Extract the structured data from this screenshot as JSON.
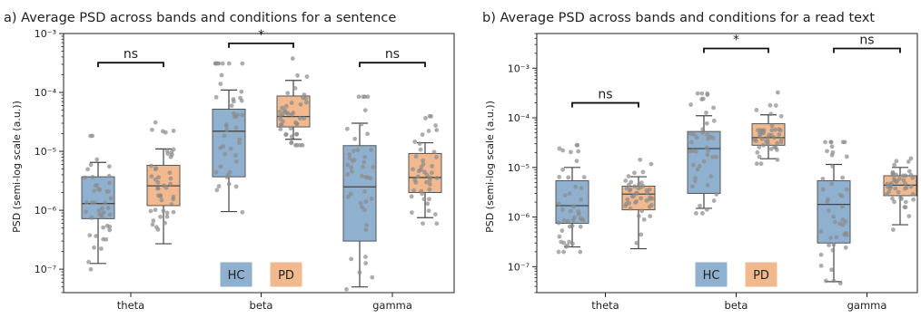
{
  "chart_data": [
    {
      "type": "box",
      "title": "a) Average PSD across bands and conditions for a sentence",
      "ylabel": "PSD (semi-log scale (a.u.))",
      "xlabel": "",
      "yscale": "log",
      "ylim": [
        4e-08,
        0.001
      ],
      "yticks": [
        "10^-7",
        "10^-6",
        "10^-5",
        "10^-4",
        "10^-3"
      ],
      "categories": [
        "theta",
        "beta",
        "gamma"
      ],
      "legend": {
        "placement": "bottom-center",
        "entries": [
          "HC",
          "PD"
        ]
      },
      "colors": {
        "HC": "#8fb1cf",
        "PD": "#f1b98d"
      },
      "series": [
        {
          "name": "HC",
          "boxes": [
            {
              "whisker_low": 1.25e-07,
              "q1": 7.2e-07,
              "median": 1.3e-06,
              "q3": 3.7e-06,
              "whisker_high": 6.5e-06
            },
            {
              "whisker_low": 9.5e-07,
              "q1": 3.7e-06,
              "median": 2.2e-05,
              "q3": 5.2e-05,
              "whisker_high": 0.00011
            },
            {
              "whisker_low": 5e-08,
              "q1": 3e-07,
              "median": 2.5e-06,
              "q3": 1.25e-05,
              "whisker_high": 3e-05
            }
          ]
        },
        {
          "name": "PD",
          "boxes": [
            {
              "whisker_low": 2.7e-07,
              "q1": 1.2e-06,
              "median": 2.6e-06,
              "q3": 5.8e-06,
              "whisker_high": 1.1e-05
            },
            {
              "whisker_low": 1.6e-05,
              "q1": 2.6e-05,
              "median": 3.9e-05,
              "q3": 8.7e-05,
              "whisker_high": 0.00016
            },
            {
              "whisker_low": 7.5e-07,
              "q1": 2e-06,
              "median": 3.6e-06,
              "q3": 9.2e-06,
              "whisker_high": 1.4e-05
            }
          ]
        }
      ],
      "significance": [
        {
          "category": "theta",
          "label": "ns",
          "y": 0.00032
        },
        {
          "category": "beta",
          "label": "*",
          "y": 0.00068
        },
        {
          "category": "gamma",
          "label": "ns",
          "y": 0.00032
        }
      ]
    },
    {
      "type": "box",
      "title": "b) Average PSD across bands and conditions for a read text",
      "ylabel": "PSD (semi-log scale (a.u.))",
      "xlabel": "",
      "yscale": "log",
      "ylim": [
        3e-08,
        0.005
      ],
      "yticks": [
        "10^-7",
        "10^-6",
        "10^-5",
        "10^-4",
        "10^-3"
      ],
      "categories": [
        "theta",
        "beta",
        "gamma"
      ],
      "legend": {
        "placement": "bottom-center",
        "entries": [
          "HC",
          "PD"
        ]
      },
      "colors": {
        "HC": "#8fb1cf",
        "PD": "#f1b98d"
      },
      "series": [
        {
          "name": "HC",
          "boxes": [
            {
              "whisker_low": 2.5e-07,
              "q1": 7.5e-07,
              "median": 1.7e-06,
              "q3": 5.4e-06,
              "whisker_high": 1e-05
            },
            {
              "whisker_low": 1.5e-06,
              "q1": 3e-06,
              "median": 2.4e-05,
              "q3": 5.3e-05,
              "whisker_high": 0.00011
            },
            {
              "whisker_low": 5e-08,
              "q1": 3e-07,
              "median": 1.8e-06,
              "q3": 5.4e-06,
              "whisker_high": 1.15e-05
            }
          ]
        },
        {
          "name": "PD",
          "boxes": [
            {
              "whisker_low": 2.3e-07,
              "q1": 1.4e-06,
              "median": 2.9e-06,
              "q3": 4.2e-06,
              "whisker_high": 6.5e-06
            },
            {
              "whisker_low": 1.5e-05,
              "q1": 2.8e-05,
              "median": 4e-05,
              "q3": 7.6e-05,
              "whisker_high": 0.000115
            },
            {
              "whisker_low": 7e-07,
              "q1": 2.7e-06,
              "median": 4.4e-06,
              "q3": 6.8e-06,
              "whisker_high": 1e-05
            }
          ]
        }
      ],
      "significance": [
        {
          "category": "theta",
          "label": "ns",
          "y": 0.0002
        },
        {
          "category": "beta",
          "label": "*",
          "y": 0.0025
        },
        {
          "category": "gamma",
          "label": "ns",
          "y": 0.0025
        }
      ]
    }
  ]
}
